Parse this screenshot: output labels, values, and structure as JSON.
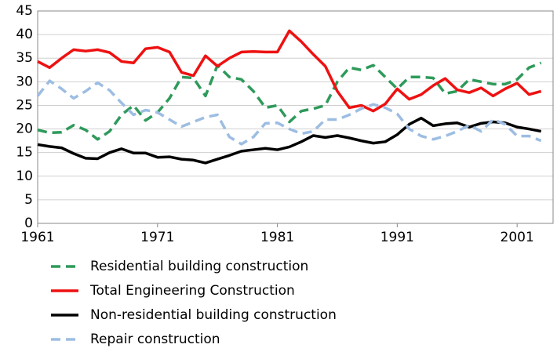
{
  "chart_data": {
    "type": "line",
    "x": [
      1961,
      1962,
      1963,
      1964,
      1965,
      1966,
      1967,
      1968,
      1969,
      1970,
      1971,
      1972,
      1973,
      1974,
      1975,
      1976,
      1977,
      1978,
      1979,
      1980,
      1981,
      1982,
      1983,
      1984,
      1985,
      1986,
      1987,
      1988,
      1989,
      1990,
      1991,
      1992,
      1993,
      1994,
      1995,
      1996,
      1997,
      1998,
      1999,
      2000,
      2001,
      2002,
      2003
    ],
    "series": [
      {
        "name": "Residential building construction",
        "color": "#2e9a5a",
        "dash": "dashed",
        "values": [
          19.8,
          19.2,
          19.3,
          20.8,
          19.8,
          17.8,
          19.5,
          23,
          25,
          21.8,
          23.5,
          26.5,
          31,
          30.8,
          27,
          33.5,
          31,
          30.5,
          28,
          24.5,
          25,
          21.5,
          23.8,
          24.3,
          25,
          30,
          33,
          32.5,
          33.5,
          31,
          28.5,
          31,
          31,
          30.8,
          27.5,
          28,
          30.5,
          30,
          29.5,
          29.5,
          30.5,
          33,
          34
        ]
      },
      {
        "name": "Total Engineering Construction",
        "color": "#ee1111",
        "dash": "solid",
        "values": [
          34.3,
          33,
          35,
          36.8,
          36.5,
          36.8,
          36.2,
          34.3,
          34,
          37,
          37.3,
          36.3,
          32,
          31.3,
          35.5,
          33.3,
          35,
          36.3,
          36.4,
          36.3,
          36.3,
          40.8,
          38.5,
          35.8,
          33.3,
          28,
          24.5,
          25,
          23.8,
          25.3,
          28.5,
          26.3,
          27.3,
          29.2,
          30.7,
          28.3,
          27.7,
          28.7,
          27,
          28.5,
          29.7,
          27.3,
          28
        ]
      },
      {
        "name": "Non-residential building construction",
        "color": "#000000",
        "dash": "solid",
        "values": [
          16.7,
          16.3,
          16,
          14.8,
          13.8,
          13.7,
          15,
          15.8,
          14.9,
          14.9,
          14,
          14.1,
          13.6,
          13.4,
          12.8,
          13.6,
          14.4,
          15.3,
          15.6,
          15.9,
          15.6,
          16.2,
          17.3,
          18.6,
          18.2,
          18.6,
          18.1,
          17.5,
          17,
          17.3,
          18.8,
          21,
          22.3,
          20.7,
          21.1,
          21.3,
          20.4,
          21.2,
          21.5,
          21.3,
          20.4,
          20,
          19.5
        ]
      },
      {
        "name": "Repair construction",
        "color": "#9dbde2",
        "dash": "dashed",
        "values": [
          27,
          30.2,
          28.5,
          26.5,
          28,
          29.8,
          28.2,
          25.5,
          23,
          24,
          23.5,
          22,
          20.5,
          21.5,
          22.5,
          23,
          18.3,
          16.8,
          18.3,
          21.2,
          21.3,
          20,
          19,
          19.5,
          22,
          22,
          23,
          24.3,
          25.2,
          24.5,
          23.2,
          20,
          18.5,
          17.8,
          18.5,
          19.5,
          20.8,
          19.5,
          22,
          21,
          18.5,
          18.5,
          17.5
        ]
      }
    ],
    "xlim": [
      1961,
      2004
    ],
    "xticks": [
      1961,
      1971,
      1981,
      1991,
      2001
    ],
    "ylim": [
      0,
      45
    ],
    "yticks": [
      0,
      5,
      10,
      15,
      20,
      25,
      30,
      35,
      40,
      45
    ],
    "grid": true,
    "legend": "bottom"
  }
}
